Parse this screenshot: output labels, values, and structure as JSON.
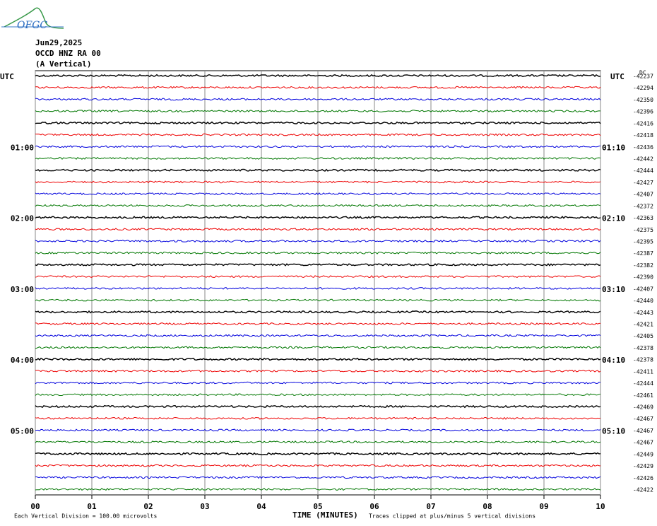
{
  "chart_data": {
    "type": "helicorder",
    "logo": "OFGC",
    "header": [
      "Jun29,2025",
      "OCCD HNZ RA 00",
      "(A Vertical)"
    ],
    "offset_unit": "DC",
    "colors": [
      "#000000",
      "#ee0000",
      "#0000dd",
      "#007700"
    ],
    "left_labels": [
      "UTC",
      null,
      null,
      null,
      null,
      null,
      "01:00",
      null,
      null,
      null,
      null,
      null,
      "02:00",
      null,
      null,
      null,
      null,
      null,
      "03:00",
      null,
      null,
      null,
      null,
      null,
      "04:00",
      null,
      null,
      null,
      null,
      null,
      "05:00",
      null,
      null,
      null,
      null,
      null
    ],
    "right_labels": [
      "UTC",
      null,
      null,
      null,
      null,
      null,
      "01:10",
      null,
      null,
      null,
      null,
      null,
      "02:10",
      null,
      null,
      null,
      null,
      null,
      "03:10",
      null,
      null,
      null,
      null,
      null,
      "04:10",
      null,
      null,
      null,
      null,
      null,
      "05:10",
      null,
      null,
      null,
      null,
      null
    ],
    "offsets": [
      -42237,
      -42294,
      -42350,
      -42396,
      -42416,
      -42418,
      -42436,
      -42442,
      -42444,
      -42427,
      -42407,
      -42372,
      -42363,
      -42375,
      -42395,
      -42387,
      -42382,
      -42390,
      -42407,
      -42440,
      -42443,
      -42421,
      -42405,
      -42378,
      -42378,
      -42411,
      -42444,
      -42461,
      -42469,
      -42467,
      -42467,
      -42467,
      -42449,
      -42429,
      -42426,
      -42422
    ],
    "xlim": [
      0,
      10
    ],
    "xticks": [
      {
        "value": 0,
        "label": "00"
      },
      {
        "value": 1,
        "label": "01"
      },
      {
        "value": 2,
        "label": "02"
      },
      {
        "value": 3,
        "label": "03"
      },
      {
        "value": 4,
        "label": "04"
      },
      {
        "value": 5,
        "label": "05"
      },
      {
        "value": 6,
        "label": "06"
      },
      {
        "value": 7,
        "label": "07"
      },
      {
        "value": 8,
        "label": "08"
      },
      {
        "value": 9,
        "label": "09"
      },
      {
        "value": 10,
        "label": "10"
      }
    ],
    "xlabel": "TIME (MINUTES)",
    "footnote_left": "Each Vertical Division =  100.00 microvolts",
    "footnote_right": "Traces clipped at plus/minus 5 vertical divisions",
    "grid": true
  }
}
